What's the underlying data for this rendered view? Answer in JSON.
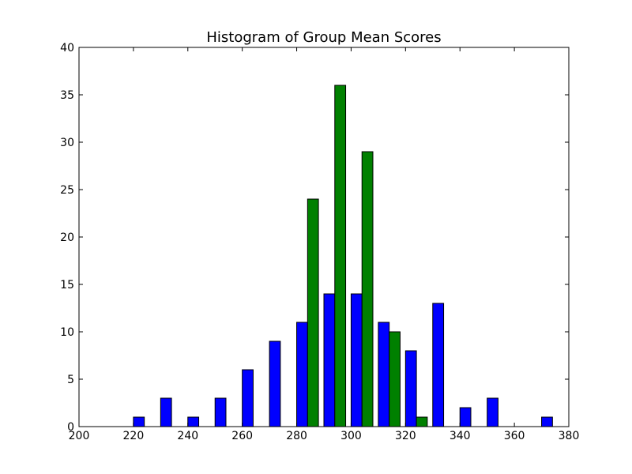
{
  "chart_data": {
    "type": "bar",
    "title": "Histogram of Group Mean Scores",
    "xlabel": "",
    "ylabel": "",
    "xlim": [
      200,
      380
    ],
    "ylim": [
      0,
      40
    ],
    "xticks": [
      "200",
      "220",
      "240",
      "260",
      "280",
      "300",
      "320",
      "340",
      "360",
      "380"
    ],
    "yticks": [
      "0",
      "5",
      "10",
      "15",
      "20",
      "25",
      "30",
      "35",
      "40"
    ],
    "bin_width": 10,
    "bin_starts": [
      200,
      210,
      220,
      230,
      240,
      250,
      260,
      270,
      280,
      290,
      300,
      310,
      320,
      330,
      340,
      350,
      360,
      370
    ],
    "grid": false,
    "legend": "none",
    "series": [
      {
        "color": "#0000ff",
        "values": [
          0,
          0,
          1,
          3,
          1,
          3,
          6,
          9,
          11,
          14,
          14,
          11,
          8,
          13,
          2,
          3,
          0,
          1
        ]
      },
      {
        "color": "#008000",
        "values": [
          0,
          0,
          0,
          0,
          0,
          0,
          0,
          0,
          24,
          36,
          29,
          10,
          1,
          0,
          0,
          0,
          0,
          0
        ]
      }
    ]
  }
}
